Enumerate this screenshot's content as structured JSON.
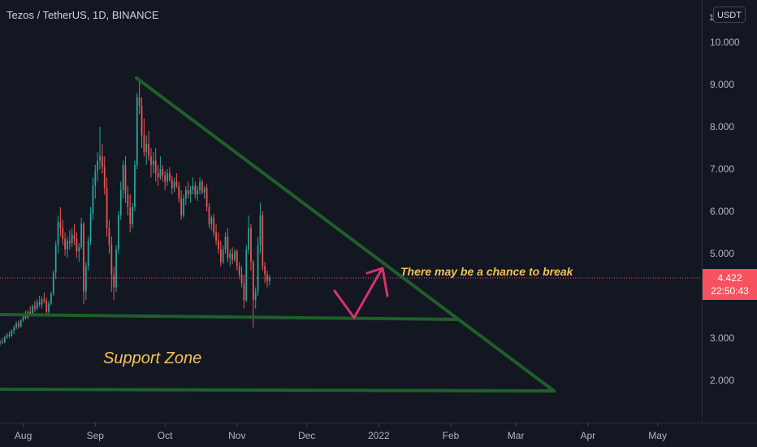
{
  "header": {
    "title": "Tezos / TetherUS, 1D, BINANCE",
    "currency": "USDT",
    "axis_top_label": "1"
  },
  "price_tag": {
    "price": "4.422",
    "countdown": "22:50:43",
    "price_value": 4.422,
    "color": "#f7525f"
  },
  "annotations": {
    "break_note": "There may be a chance to break",
    "support_label": "Support Zone",
    "text_color": "#f5c05a",
    "line_color": "#1f5f2a",
    "arrow_color": "#d6336c"
  },
  "colors": {
    "background": "#131722",
    "up": "#26a69a",
    "down": "#ef5350",
    "axis_text": "#b2b5be"
  },
  "chart_data": {
    "type": "candlestick",
    "symbol": "Tezos / TetherUS",
    "interval": "1D",
    "exchange": "BINANCE",
    "y_ticks": [
      "2.000",
      "3.000",
      "4.000",
      "5.000",
      "6.000",
      "7.000",
      "8.000",
      "9.000",
      "10.000"
    ],
    "ylim": [
      1.0,
      11.0
    ],
    "x_ticks": [
      "Aug",
      "Sep",
      "Oct",
      "Nov",
      "Dec",
      "2022",
      "Feb",
      "Mar",
      "Apr",
      "May"
    ],
    "x_tick_dates": [
      "2021-08-01",
      "2021-09-01",
      "2021-10-01",
      "2021-11-01",
      "2021-12-01",
      "2022-01-01",
      "2022-02-01",
      "2022-03-01",
      "2022-04-01",
      "2022-05-01"
    ],
    "xlim": [
      "2021-07-22",
      "2022-05-20"
    ],
    "first_candle_date": "2021-07-21",
    "candles": [
      [
        2.85,
        2.9,
        2.8,
        2.88
      ],
      [
        2.88,
        2.95,
        2.82,
        2.92
      ],
      [
        2.92,
        3.0,
        2.86,
        2.9
      ],
      [
        2.9,
        3.05,
        2.88,
        3.02
      ],
      [
        3.02,
        3.12,
        2.98,
        3.08
      ],
      [
        3.08,
        3.15,
        3.0,
        3.05
      ],
      [
        3.05,
        3.2,
        3.03,
        3.18
      ],
      [
        3.18,
        3.3,
        3.1,
        3.25
      ],
      [
        3.25,
        3.4,
        3.2,
        3.35
      ],
      [
        3.35,
        3.42,
        3.22,
        3.28
      ],
      [
        3.28,
        3.45,
        3.25,
        3.42
      ],
      [
        3.42,
        3.58,
        3.38,
        3.52
      ],
      [
        3.52,
        3.65,
        3.44,
        3.48
      ],
      [
        3.48,
        3.66,
        3.45,
        3.62
      ],
      [
        3.62,
        3.75,
        3.52,
        3.58
      ],
      [
        3.58,
        3.8,
        3.55,
        3.76
      ],
      [
        3.76,
        3.88,
        3.62,
        3.7
      ],
      [
        3.7,
        3.92,
        3.66,
        3.85
      ],
      [
        3.85,
        4.0,
        3.74,
        3.8
      ],
      [
        3.8,
        3.98,
        3.7,
        3.92
      ],
      [
        3.92,
        4.08,
        3.82,
        3.88
      ],
      [
        3.88,
        3.96,
        3.55,
        3.62
      ],
      [
        3.62,
        3.88,
        3.58,
        3.82
      ],
      [
        3.82,
        4.1,
        3.78,
        4.05
      ],
      [
        4.05,
        4.6,
        4.0,
        4.55
      ],
      [
        4.55,
        5.3,
        4.4,
        5.2
      ],
      [
        5.2,
        5.9,
        5.0,
        5.75
      ],
      [
        5.75,
        6.1,
        5.4,
        5.6
      ],
      [
        5.6,
        5.8,
        5.2,
        5.35
      ],
      [
        5.35,
        5.5,
        4.95,
        5.1
      ],
      [
        5.1,
        5.4,
        4.9,
        5.3
      ],
      [
        5.3,
        5.55,
        5.1,
        5.25
      ],
      [
        5.25,
        5.6,
        5.15,
        5.45
      ],
      [
        5.45,
        5.7,
        5.2,
        5.35
      ],
      [
        5.35,
        5.5,
        4.9,
        5.05
      ],
      [
        5.05,
        5.25,
        4.8,
        5.15
      ],
      [
        5.15,
        5.85,
        5.1,
        5.7
      ],
      [
        5.7,
        5.75,
        3.8,
        4.1
      ],
      [
        4.1,
        4.8,
        3.9,
        4.7
      ],
      [
        4.7,
        5.4,
        4.6,
        5.3
      ],
      [
        5.3,
        6.1,
        5.2,
        5.95
      ],
      [
        5.95,
        6.8,
        5.8,
        6.6
      ],
      [
        6.6,
        7.1,
        6.3,
        6.95
      ],
      [
        6.95,
        7.4,
        6.7,
        7.2
      ],
      [
        7.2,
        8.0,
        7.0,
        7.3
      ],
      [
        7.3,
        7.6,
        6.9,
        7.05
      ],
      [
        7.05,
        7.3,
        6.4,
        6.55
      ],
      [
        6.55,
        6.8,
        5.4,
        5.6
      ],
      [
        5.6,
        5.8,
        5.0,
        5.2
      ],
      [
        5.2,
        5.4,
        4.1,
        4.5
      ],
      [
        4.5,
        4.7,
        3.9,
        4.2
      ],
      [
        4.2,
        5.2,
        4.1,
        5.1
      ],
      [
        5.1,
        6.0,
        5.0,
        5.9
      ],
      [
        5.9,
        6.7,
        5.8,
        6.5
      ],
      [
        6.5,
        7.2,
        6.3,
        7.1
      ],
      [
        7.1,
        7.3,
        6.2,
        6.4
      ],
      [
        6.4,
        6.6,
        5.9,
        6.1
      ],
      [
        6.1,
        6.4,
        5.5,
        5.7
      ],
      [
        5.7,
        6.2,
        5.6,
        6.1
      ],
      [
        6.1,
        7.2,
        6.0,
        7.1
      ],
      [
        7.1,
        8.8,
        7.0,
        8.7
      ],
      [
        8.7,
        9.15,
        8.3,
        8.5
      ],
      [
        8.5,
        8.7,
        7.5,
        7.8
      ],
      [
        7.8,
        8.2,
        7.3,
        7.4
      ],
      [
        7.4,
        7.8,
        7.1,
        7.6
      ],
      [
        7.6,
        7.9,
        7.2,
        7.3
      ],
      [
        7.3,
        7.5,
        6.8,
        7.1
      ],
      [
        7.1,
        7.4,
        6.9,
        7.2
      ],
      [
        7.2,
        7.5,
        6.7,
        6.9
      ],
      [
        6.9,
        7.1,
        6.6,
        6.8
      ],
      [
        6.8,
        7.3,
        6.75,
        7.0
      ],
      [
        7.0,
        7.1,
        6.7,
        6.85
      ],
      [
        6.85,
        6.95,
        6.5,
        6.7
      ],
      [
        6.7,
        7.0,
        6.6,
        6.9
      ],
      [
        6.9,
        7.05,
        6.7,
        6.75
      ],
      [
        6.75,
        6.85,
        6.4,
        6.55
      ],
      [
        6.55,
        6.8,
        6.45,
        6.7
      ],
      [
        6.7,
        6.9,
        6.55,
        6.6
      ],
      [
        6.6,
        6.7,
        6.2,
        6.3
      ],
      [
        6.3,
        6.5,
        5.8,
        5.9
      ],
      [
        5.9,
        6.4,
        5.85,
        6.3
      ],
      [
        6.3,
        6.6,
        6.15,
        6.5
      ],
      [
        6.5,
        6.7,
        6.3,
        6.4
      ],
      [
        6.4,
        6.6,
        6.2,
        6.5
      ],
      [
        6.5,
        6.8,
        6.4,
        6.6
      ],
      [
        6.6,
        6.7,
        6.3,
        6.4
      ],
      [
        6.4,
        6.6,
        6.25,
        6.5
      ],
      [
        6.5,
        6.8,
        6.4,
        6.7
      ],
      [
        6.7,
        6.75,
        6.4,
        6.45
      ],
      [
        6.45,
        6.6,
        6.3,
        6.55
      ],
      [
        6.55,
        6.65,
        6.0,
        6.1
      ],
      [
        6.1,
        6.2,
        5.6,
        5.7
      ],
      [
        5.7,
        5.9,
        5.55,
        5.85
      ],
      [
        5.85,
        5.95,
        5.4,
        5.5
      ],
      [
        5.5,
        5.7,
        5.2,
        5.3
      ],
      [
        5.3,
        5.5,
        5.0,
        5.1
      ],
      [
        5.1,
        5.3,
        4.7,
        4.8
      ],
      [
        4.8,
        5.2,
        4.75,
        5.1
      ],
      [
        5.1,
        5.5,
        5.0,
        5.4
      ],
      [
        5.4,
        5.6,
        4.8,
        4.9
      ],
      [
        4.9,
        5.1,
        4.7,
        5.0
      ],
      [
        5.0,
        5.15,
        4.75,
        4.85
      ],
      [
        4.85,
        5.1,
        4.8,
        5.05
      ],
      [
        5.05,
        5.1,
        4.6,
        4.7
      ],
      [
        4.7,
        4.8,
        4.4,
        4.5
      ],
      [
        4.5,
        4.7,
        4.2,
        4.3
      ],
      [
        4.3,
        4.5,
        3.7,
        3.9
      ],
      [
        3.9,
        5.2,
        3.85,
        5.1
      ],
      [
        5.1,
        5.9,
        5.0,
        5.6
      ],
      [
        5.6,
        5.7,
        4.6,
        4.8
      ],
      [
        4.8,
        4.85,
        3.25,
        3.9
      ],
      [
        3.9,
        4.2,
        3.7,
        4.1
      ],
      [
        4.1,
        5.4,
        4.0,
        5.2
      ],
      [
        5.2,
        6.2,
        5.0,
        5.9
      ],
      [
        5.9,
        6.0,
        4.6,
        4.7
      ],
      [
        4.7,
        4.8,
        4.3,
        4.5
      ],
      [
        4.5,
        4.6,
        4.2,
        4.35
      ],
      [
        4.35,
        4.5,
        4.25,
        4.422
      ]
    ],
    "current_price": 4.422,
    "title": "Tezos / TetherUS, 1D, BINANCE",
    "grid": false
  }
}
